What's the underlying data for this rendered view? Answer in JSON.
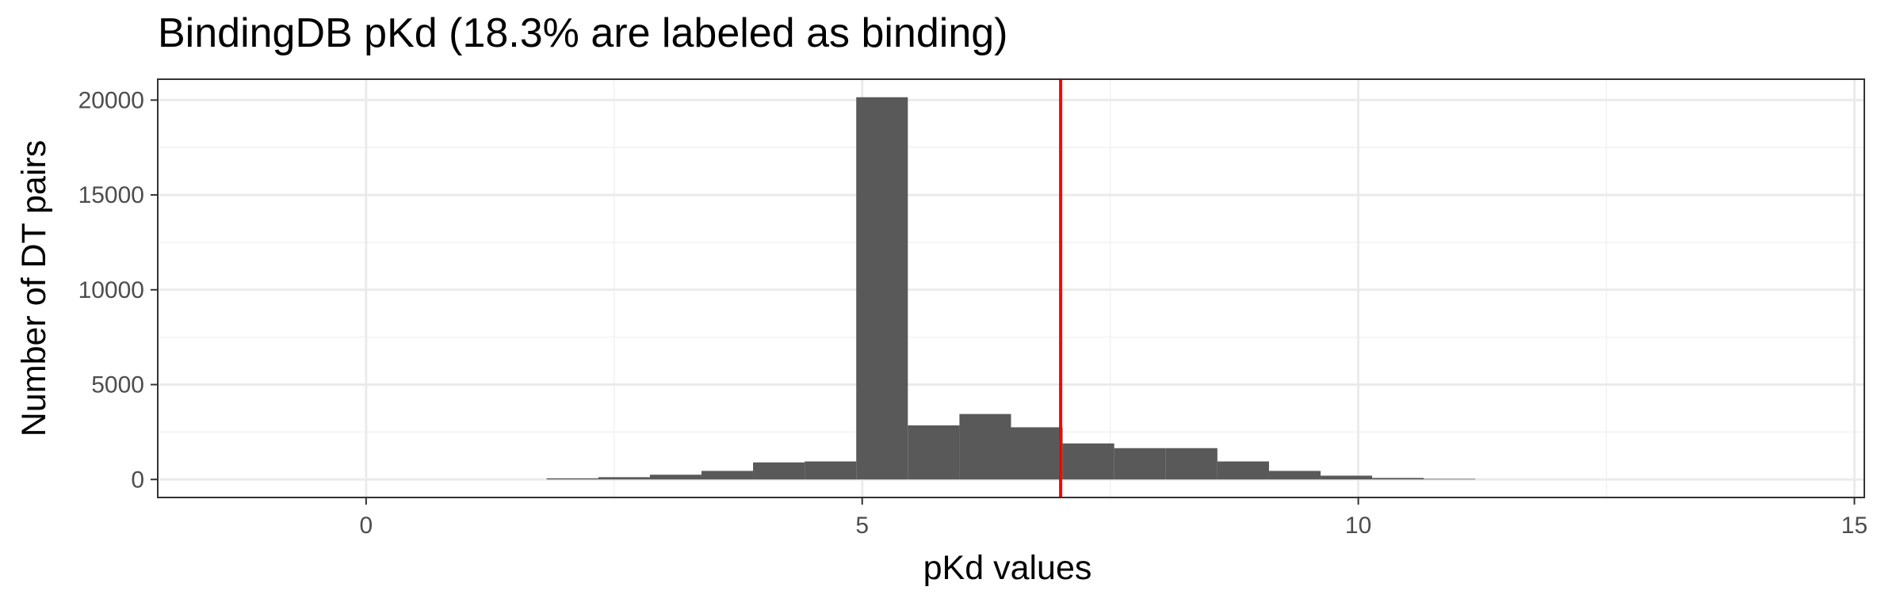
{
  "chart_data": {
    "type": "bar",
    "title": "BindingDB pKd (18.3% are labeled as binding)",
    "xlabel": "pKd values",
    "ylabel": "Number of DT pairs",
    "xlim": [
      -2.1,
      15.1
    ],
    "ylim": [
      -950,
      21100
    ],
    "xticks": [
      0,
      5,
      10,
      15
    ],
    "yticks": [
      0,
      5000,
      10000,
      15000,
      20000
    ],
    "bin_width": 0.52,
    "bins": [
      {
        "x0": 1.82,
        "x1": 2.34,
        "count": 60
      },
      {
        "x0": 2.34,
        "x1": 2.86,
        "count": 120
      },
      {
        "x0": 2.86,
        "x1": 3.38,
        "count": 250
      },
      {
        "x0": 3.38,
        "x1": 3.9,
        "count": 450
      },
      {
        "x0": 3.9,
        "x1": 4.42,
        "count": 900
      },
      {
        "x0": 4.42,
        "x1": 4.94,
        "count": 950
      },
      {
        "x0": 4.94,
        "x1": 5.46,
        "count": 20150
      },
      {
        "x0": 5.46,
        "x1": 5.98,
        "count": 2850
      },
      {
        "x0": 5.98,
        "x1": 6.5,
        "count": 3450
      },
      {
        "x0": 6.5,
        "x1": 7.02,
        "count": 2750
      },
      {
        "x0": 7.02,
        "x1": 7.54,
        "count": 1900
      },
      {
        "x0": 7.54,
        "x1": 8.06,
        "count": 1650
      },
      {
        "x0": 8.06,
        "x1": 8.58,
        "count": 1650
      },
      {
        "x0": 8.58,
        "x1": 9.1,
        "count": 950
      },
      {
        "x0": 9.1,
        "x1": 9.62,
        "count": 450
      },
      {
        "x0": 9.62,
        "x1": 10.14,
        "count": 200
      },
      {
        "x0": 10.14,
        "x1": 10.66,
        "count": 80
      },
      {
        "x0": 10.66,
        "x1": 11.18,
        "count": 30
      }
    ],
    "threshold": {
      "x": 7.0,
      "color": "#ff0000"
    },
    "bar_color": "#595959",
    "grid": true
  }
}
